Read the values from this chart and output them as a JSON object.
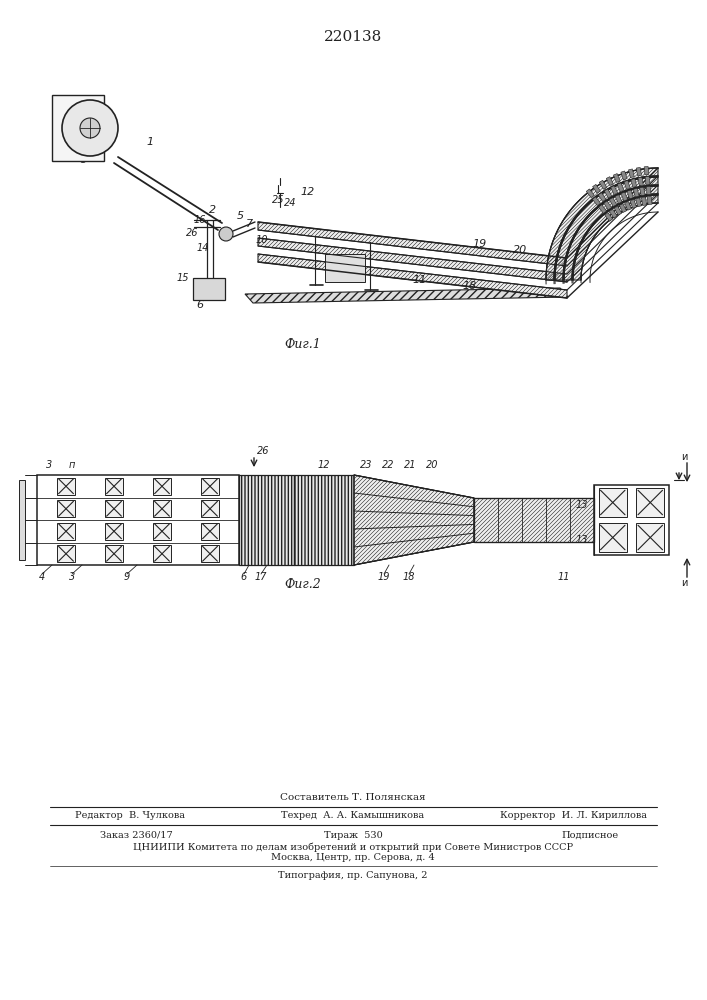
{
  "patent_number": "220138",
  "fig1_caption": "Фиг.1",
  "fig2_caption": "Фиг.2",
  "footer_composer": "Составитель Т. Полянская",
  "footer_editor": "Редактор  В. Чулкова",
  "footer_tech": "Техред  А. А. Камышникова",
  "footer_corrector": "Корректор  И. Л. Кириллова",
  "footer_order": "Заказ 2360/17",
  "footer_tirage": "Тираж  530",
  "footer_podp": "Подписное",
  "footer_org": "ЦНИИПИ Комитета по делам изобретений и открытий при Совете Министров СССР",
  "footer_city": "Москва, Центр, пр. Серова, д. 4",
  "footer_print": "Типография, пр. Сапунова, 2",
  "bg_color": "#ffffff",
  "line_color": "#222222"
}
